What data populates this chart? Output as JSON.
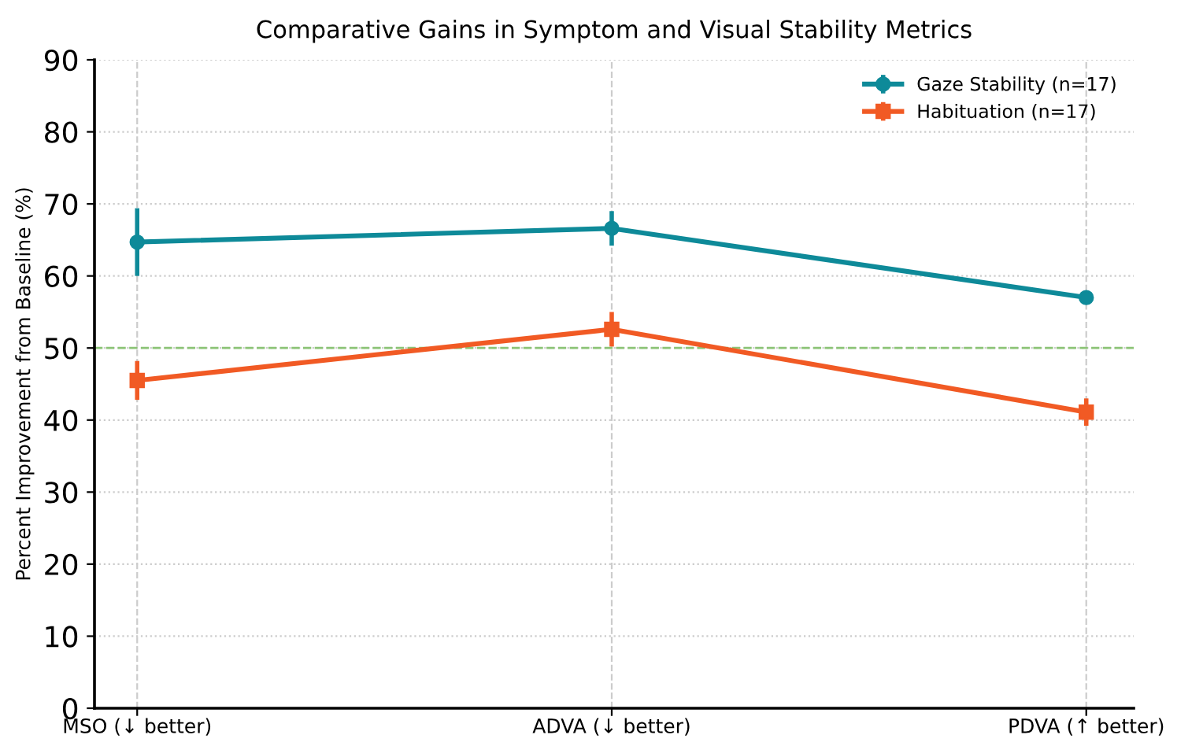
{
  "chart_data": {
    "type": "line",
    "title": "Comparative Gains in Symptom and Visual Stability Metrics",
    "ylabel": "Percent Improvement from Baseline (%)",
    "categories": [
      "MSO (↓ better)",
      "ADVA (↓ better)",
      "PDVA (↑ better)"
    ],
    "series": [
      {
        "name": "Gaze Stability (n=17)",
        "color": "#0e8a99",
        "values": [
          64.7,
          66.6,
          57.0
        ],
        "errors": [
          4.7,
          2.4,
          0.5
        ],
        "marker": "circle"
      },
      {
        "name": "Habituation (n=17)",
        "color": "#f15a24",
        "values": [
          45.5,
          52.6,
          41.1
        ],
        "errors": [
          2.7,
          2.4,
          1.9
        ],
        "marker": "square"
      }
    ],
    "ylim": [
      0,
      90
    ],
    "yticks": [
      0,
      10,
      20,
      30,
      40,
      50,
      60,
      70,
      80,
      90
    ],
    "grid": true,
    "legend": "top right",
    "line_style": "solid",
    "ref_lines": [
      {
        "axis": "y",
        "value": 50,
        "color": "#8cc476",
        "line_style": "dashed"
      }
    ]
  }
}
